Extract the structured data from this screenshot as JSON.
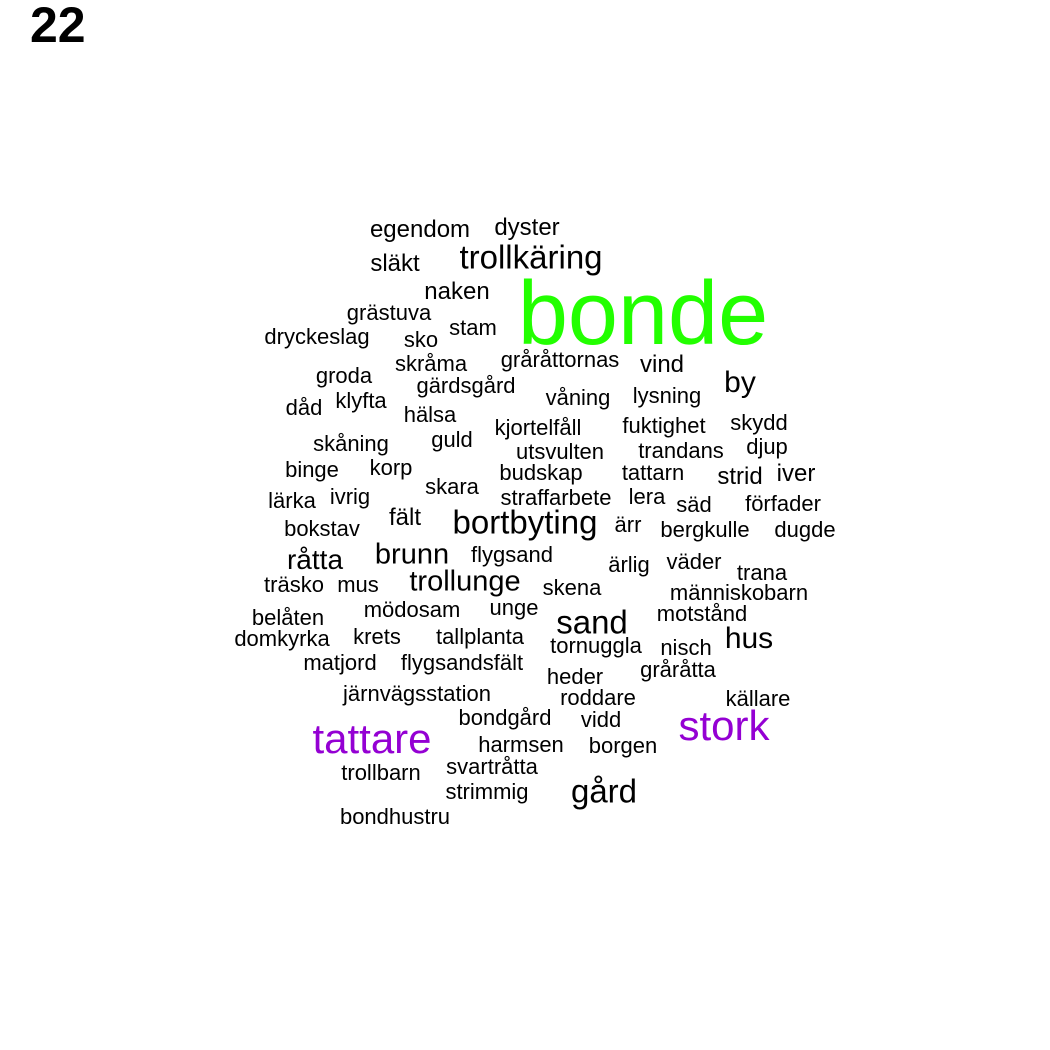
{
  "page_number": "22",
  "colors": {
    "primary": "#22ff00",
    "secondary": "#9400d3",
    "default": "#000000"
  },
  "words": [
    {
      "text": "bonde",
      "color": "#22ff00"
    },
    {
      "text": "stork",
      "color": "#9400d3"
    },
    {
      "text": "tattare",
      "color": "#9400d3"
    },
    {
      "text": "trollkäring"
    },
    {
      "text": "bortbyting"
    },
    {
      "text": "sand"
    },
    {
      "text": "gård"
    },
    {
      "text": "hus"
    },
    {
      "text": "by"
    },
    {
      "text": "trollunge"
    },
    {
      "text": "brunn"
    },
    {
      "text": "råtta"
    },
    {
      "text": "egendom"
    },
    {
      "text": "dyster"
    },
    {
      "text": "släkt"
    },
    {
      "text": "naken"
    },
    {
      "text": "grästuva"
    },
    {
      "text": "stam"
    },
    {
      "text": "dryckeslag"
    },
    {
      "text": "sko"
    },
    {
      "text": "skråma"
    },
    {
      "text": "gråråttornas"
    },
    {
      "text": "vind"
    },
    {
      "text": "groda"
    },
    {
      "text": "gärdsgård"
    },
    {
      "text": "våning"
    },
    {
      "text": "lysning"
    },
    {
      "text": "dåd"
    },
    {
      "text": "klyfta"
    },
    {
      "text": "hälsa"
    },
    {
      "text": "kjortelfåll"
    },
    {
      "text": "fuktighet"
    },
    {
      "text": "skydd"
    },
    {
      "text": "skåning"
    },
    {
      "text": "guld"
    },
    {
      "text": "utsvulten"
    },
    {
      "text": "trandans"
    },
    {
      "text": "djup"
    },
    {
      "text": "binge"
    },
    {
      "text": "korp"
    },
    {
      "text": "budskap"
    },
    {
      "text": "tattarn"
    },
    {
      "text": "strid"
    },
    {
      "text": "iver"
    },
    {
      "text": "lärka"
    },
    {
      "text": "ivrig"
    },
    {
      "text": "skara"
    },
    {
      "text": "straffarbete"
    },
    {
      "text": "lera"
    },
    {
      "text": "säd"
    },
    {
      "text": "förfader"
    },
    {
      "text": "bokstav"
    },
    {
      "text": "fält"
    },
    {
      "text": "ärr"
    },
    {
      "text": "bergkulle"
    },
    {
      "text": "dugde"
    },
    {
      "text": "flygsand"
    },
    {
      "text": "ärlig"
    },
    {
      "text": "väder"
    },
    {
      "text": "trana"
    },
    {
      "text": "träsko"
    },
    {
      "text": "mus"
    },
    {
      "text": "skena"
    },
    {
      "text": "människobarn"
    },
    {
      "text": "belåten"
    },
    {
      "text": "mödosam"
    },
    {
      "text": "unge"
    },
    {
      "text": "motstånd"
    },
    {
      "text": "domkyrka"
    },
    {
      "text": "krets"
    },
    {
      "text": "tallplanta"
    },
    {
      "text": "tornuggla"
    },
    {
      "text": "nisch"
    },
    {
      "text": "matjord"
    },
    {
      "text": "flygsandsfält"
    },
    {
      "text": "heder"
    },
    {
      "text": "gråråtta"
    },
    {
      "text": "järnvägsstation"
    },
    {
      "text": "roddare"
    },
    {
      "text": "källare"
    },
    {
      "text": "bondgård"
    },
    {
      "text": "vidd"
    },
    {
      "text": "harmsen"
    },
    {
      "text": "borgen"
    },
    {
      "text": "trollbarn"
    },
    {
      "text": "svartråtta"
    },
    {
      "text": "strimmig"
    },
    {
      "text": "bondhustru"
    }
  ]
}
